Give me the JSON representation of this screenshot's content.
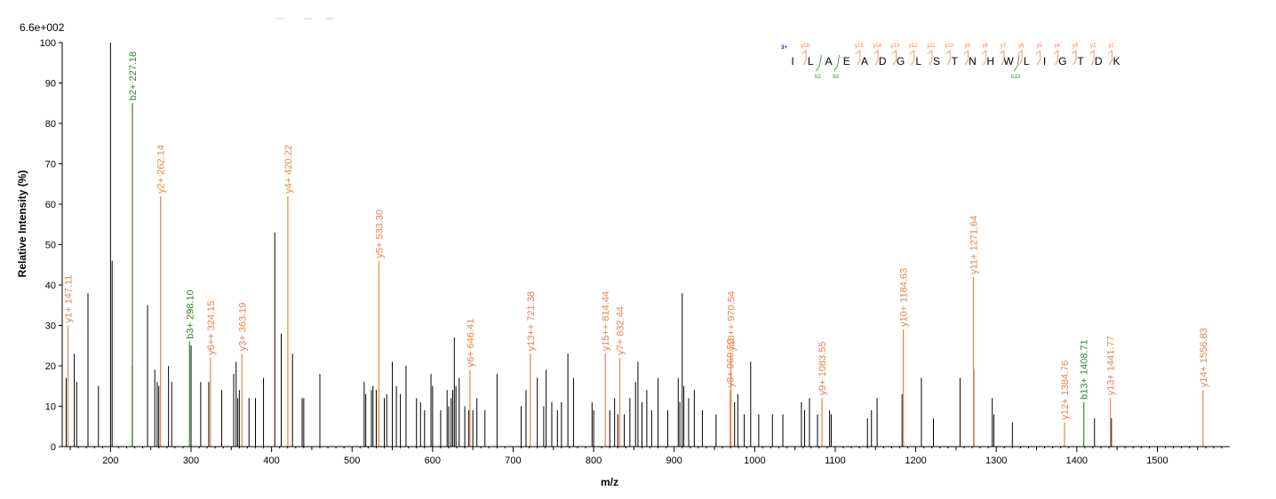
{
  "chart_data": {
    "type": "bar",
    "title": "",
    "scale_label": "6.6e+002",
    "xlabel": "m/z",
    "ylabel": "Relative   Intensity (%)",
    "xlim": [
      140,
      1590
    ],
    "ylim": [
      0,
      100
    ],
    "x_ticks": [
      200,
      300,
      400,
      500,
      600,
      700,
      800,
      900,
      1000,
      1100,
      1200,
      1300,
      1400,
      1500
    ],
    "y_ticks": [
      0,
      10,
      20,
      30,
      40,
      50,
      60,
      70,
      80,
      90,
      100
    ],
    "colors": {
      "y": "#e8844a",
      "b": "#2a8a2a",
      "other": "#000000",
      "charge": "#1010c0"
    },
    "peaks": [
      [
        145,
        17
      ],
      [
        155,
        23
      ],
      [
        158,
        16
      ],
      [
        172,
        38
      ],
      [
        185,
        15
      ],
      [
        200,
        100
      ],
      [
        202,
        46
      ],
      [
        227,
        20
      ],
      [
        246,
        35
      ],
      [
        255,
        19
      ],
      [
        258,
        16
      ],
      [
        260,
        15
      ],
      [
        272,
        20
      ],
      [
        276,
        16
      ],
      [
        300,
        25
      ],
      [
        312,
        16
      ],
      [
        322,
        16
      ],
      [
        338,
        14
      ],
      [
        353,
        18
      ],
      [
        356,
        21
      ],
      [
        358,
        12
      ],
      [
        360,
        14
      ],
      [
        372,
        12
      ],
      [
        380,
        12
      ],
      [
        390,
        17
      ],
      [
        404,
        53
      ],
      [
        412,
        28
      ],
      [
        426,
        23
      ],
      [
        438,
        12
      ],
      [
        440,
        12
      ],
      [
        460,
        18
      ],
      [
        515,
        16
      ],
      [
        517,
        13
      ],
      [
        524,
        14
      ],
      [
        526,
        15
      ],
      [
        530,
        14
      ],
      [
        540,
        12
      ],
      [
        543,
        13
      ],
      [
        550,
        21
      ],
      [
        555,
        15
      ],
      [
        560,
        13
      ],
      [
        567,
        20
      ],
      [
        580,
        12
      ],
      [
        585,
        11
      ],
      [
        590,
        9
      ],
      [
        598,
        18
      ],
      [
        600,
        15
      ],
      [
        610,
        9
      ],
      [
        618,
        14
      ],
      [
        620,
        10
      ],
      [
        623,
        12
      ],
      [
        625,
        14
      ],
      [
        627,
        27
      ],
      [
        629,
        15
      ],
      [
        633,
        17
      ],
      [
        640,
        10
      ],
      [
        645,
        9
      ],
      [
        650,
        9
      ],
      [
        655,
        12
      ],
      [
        665,
        9
      ],
      [
        680,
        18
      ],
      [
        710,
        10
      ],
      [
        716,
        14
      ],
      [
        730,
        17
      ],
      [
        738,
        10
      ],
      [
        741,
        19
      ],
      [
        748,
        11
      ],
      [
        755,
        9
      ],
      [
        760,
        11
      ],
      [
        768,
        23
      ],
      [
        775,
        17
      ],
      [
        798,
        11
      ],
      [
        800,
        9
      ],
      [
        820,
        9
      ],
      [
        826,
        12
      ],
      [
        830,
        8
      ],
      [
        838,
        8
      ],
      [
        845,
        12
      ],
      [
        852,
        16
      ],
      [
        855,
        21
      ],
      [
        860,
        11
      ],
      [
        866,
        14
      ],
      [
        872,
        9
      ],
      [
        880,
        17
      ],
      [
        892,
        9
      ],
      [
        905,
        17
      ],
      [
        907,
        11
      ],
      [
        910,
        38
      ],
      [
        912,
        15
      ],
      [
        918,
        12
      ],
      [
        925,
        14
      ],
      [
        935,
        9
      ],
      [
        952,
        8
      ],
      [
        975,
        11
      ],
      [
        979,
        13
      ],
      [
        987,
        8
      ],
      [
        995,
        21
      ],
      [
        1005,
        8
      ],
      [
        1022,
        8
      ],
      [
        1035,
        8
      ],
      [
        1058,
        11
      ],
      [
        1062,
        9
      ],
      [
        1068,
        12
      ],
      [
        1078,
        8
      ],
      [
        1093,
        9
      ],
      [
        1095,
        8
      ],
      [
        1140,
        7
      ],
      [
        1145,
        9
      ],
      [
        1152,
        12
      ],
      [
        1183,
        13
      ],
      [
        1207,
        17
      ],
      [
        1222,
        7
      ],
      [
        1255,
        17
      ],
      [
        1272,
        19
      ],
      [
        1295,
        12
      ],
      [
        1297,
        8
      ],
      [
        1320,
        6
      ],
      [
        1422,
        7
      ],
      [
        1443,
        7
      ]
    ],
    "annotated_peaks": [
      {
        "x": 147.11,
        "y": 30,
        "series": "y",
        "label": "y1+ 147.11"
      },
      {
        "x": 227.18,
        "y": 85,
        "series": "b",
        "label": "b2+ 227.18"
      },
      {
        "x": 262.14,
        "y": 62,
        "series": "y",
        "label": "y2+ 262.14"
      },
      {
        "x": 298.1,
        "y": 26,
        "series": "b",
        "label": "b3+ 298.10"
      },
      {
        "x": 324.15,
        "y": 22,
        "series": "y",
        "label": "y6++ 324.15"
      },
      {
        "x": 363.19,
        "y": 23,
        "series": "y",
        "label": "y3+ 363.19"
      },
      {
        "x": 420.22,
        "y": 62,
        "series": "y",
        "label": "y4+ 420.22"
      },
      {
        "x": 533.3,
        "y": 46,
        "series": "y",
        "label": "y5+ 533.30"
      },
      {
        "x": 646.41,
        "y": 19,
        "series": "y",
        "label": "y6+ 646.41"
      },
      {
        "x": 721.38,
        "y": 23,
        "series": "y",
        "label": "y13++ 721.38"
      },
      {
        "x": 814.44,
        "y": 23,
        "series": "y",
        "label": "y15++ 814.44"
      },
      {
        "x": 832.44,
        "y": 22,
        "series": "y",
        "label": "y7+ 832.44"
      },
      {
        "x": 969.52,
        "y": 14,
        "series": "y",
        "label": "y8+ 969.52"
      },
      {
        "x": 970.54,
        "y": 23,
        "series": "y",
        "label": "y18++ 970.54"
      },
      {
        "x": 1083.55,
        "y": 12,
        "series": "y",
        "label": "y9+ 1083.55"
      },
      {
        "x": 1184.63,
        "y": 29,
        "series": "y",
        "label": "y10+ 1184.63"
      },
      {
        "x": 1271.64,
        "y": 42,
        "series": "y",
        "label": "y11+ 1271.64"
      },
      {
        "x": 1384.76,
        "y": 6,
        "series": "y",
        "label": "y12+ 1384.76"
      },
      {
        "x": 1408.71,
        "y": 11,
        "series": "b",
        "label": "b13+ 1408.71"
      },
      {
        "x": 1441.77,
        "y": 12,
        "series": "y",
        "label": "y13+ 1441.77"
      },
      {
        "x": 1556.83,
        "y": 14,
        "series": "y",
        "label": "y14+ 1556.83"
      }
    ],
    "sequence": {
      "charge": "3+",
      "residues": [
        "I",
        "L",
        "A",
        "E",
        "A",
        "D",
        "G",
        "L",
        "S",
        "T",
        "N",
        "H",
        "W",
        "L",
        "I",
        "G",
        "T",
        "D",
        "K"
      ],
      "y_ions": [
        {
          "after": 1,
          "label": "y18"
        },
        {
          "after": 4,
          "label": "y15"
        },
        {
          "after": 5,
          "label": "y14"
        },
        {
          "after": 6,
          "label": "y13"
        },
        {
          "after": 7,
          "label": "y12"
        },
        {
          "after": 8,
          "label": "y11"
        },
        {
          "after": 9,
          "label": "y10"
        },
        {
          "after": 10,
          "label": "y9"
        },
        {
          "after": 11,
          "label": "y8"
        },
        {
          "after": 12,
          "label": "y7"
        },
        {
          "after": 13,
          "label": "y6"
        },
        {
          "after": 14,
          "label": "y5"
        },
        {
          "after": 15,
          "label": "y4"
        },
        {
          "after": 16,
          "label": "y3"
        },
        {
          "after": 17,
          "label": "y2"
        },
        {
          "after": 18,
          "label": "y1"
        }
      ],
      "b_ions": [
        {
          "after": 2,
          "label": "b2"
        },
        {
          "after": 3,
          "label": "b3"
        },
        {
          "after": 13,
          "label": "b13"
        }
      ]
    }
  }
}
